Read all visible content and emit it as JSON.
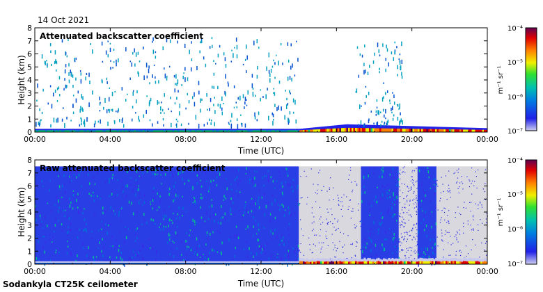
{
  "date": "14 Oct 2021",
  "footer": "Sodankyla CT25K ceilometer",
  "colorbar": {
    "unit": "m⁻¹ sr⁻¹",
    "ticks": [
      "10⁻⁴",
      "10⁻⁵",
      "10⁻⁶",
      "10⁻⁷"
    ],
    "scale": "log",
    "range": [
      1e-07,
      0.0001
    ]
  },
  "colors": {
    "no_signal": "#d8d8de",
    "palette": [
      "#c8c8ee",
      "#2323e8",
      "#0050d0",
      "#00a0c0",
      "#00d070",
      "#f0f000",
      "#ff8000",
      "#e00000",
      "#600050"
    ]
  },
  "chart_data": [
    {
      "type": "heatmap",
      "title": "Attenuated backscatter coefficient",
      "xlabel": "Time (UTC)",
      "ylabel": "Height (km)",
      "xticks": [
        "00:00",
        "04:00",
        "08:00",
        "12:00",
        "16:00",
        "20:00",
        "00:00"
      ],
      "yticks": [
        "0",
        "1",
        "2",
        "3",
        "4",
        "5",
        "6",
        "7",
        "8"
      ],
      "xlim": [
        0,
        24
      ],
      "ylim": [
        0,
        8
      ],
      "colorscale": "log",
      "clim": [
        1e-07,
        0.0001
      ],
      "features": {
        "boundary_layer_km": [
          0,
          0.3
        ],
        "aerosol_layer_rise": {
          "start_hour": 14,
          "peak_hour": 16.5,
          "top_km": 0.9
        },
        "sparse_signal_hours": [
          [
            0,
            14
          ],
          [
            17,
            19.5
          ]
        ],
        "max_signal_height_km": 7.3
      }
    },
    {
      "type": "heatmap",
      "title": "Raw attenuated backscatter coefficient",
      "xlabel": "Time (UTC)",
      "ylabel": "Height (km)",
      "xticks": [
        "00:00",
        "04:00",
        "08:00",
        "12:00",
        "16:00",
        "20:00",
        "00:00"
      ],
      "yticks": [
        "0",
        "1",
        "2",
        "3",
        "4",
        "5",
        "6",
        "7",
        "8"
      ],
      "xlim": [
        0,
        24
      ],
      "ylim": [
        0,
        8
      ],
      "colorscale": "log",
      "clim": [
        1e-07,
        0.0001
      ],
      "features": {
        "noise_top_km": 7.5,
        "dense_noise_hours": [
          [
            0,
            14
          ],
          [
            17.3,
            19.3
          ],
          [
            20.3,
            21.3
          ]
        ],
        "sparse_noise_hours": [
          [
            14,
            17.3
          ],
          [
            19.3,
            20.3
          ],
          [
            21.3,
            24
          ]
        ]
      }
    }
  ]
}
